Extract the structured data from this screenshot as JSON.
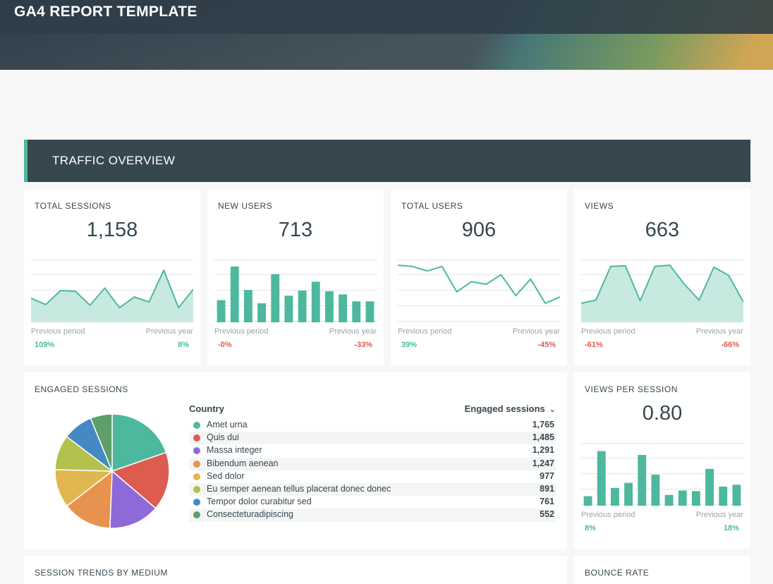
{
  "banner": {
    "title": "GA4 REPORT TEMPLATE"
  },
  "section": {
    "title": "TRAFFIC OVERVIEW"
  },
  "colors": {
    "accent": "#4db89e",
    "negative": "#e05a4f",
    "dark": "#37474f"
  },
  "labels": {
    "previous_period": "Previous period",
    "previous_year": "Previous year"
  },
  "kpis": [
    {
      "title": "TOTAL SESSIONS",
      "value": "1,158",
      "prev_period": "109%",
      "prev_year": "8%",
      "prev_period_trend": "positive",
      "prev_year_trend": "positive"
    },
    {
      "title": "NEW USERS",
      "value": "713",
      "prev_period": "-0%",
      "prev_year": "-33%",
      "prev_period_trend": "negative",
      "prev_year_trend": "negative"
    },
    {
      "title": "TOTAL USERS",
      "value": "906",
      "prev_period": "39%",
      "prev_year": "-45%",
      "prev_period_trend": "positive",
      "prev_year_trend": "negative"
    },
    {
      "title": "VIEWS",
      "value": "663",
      "prev_period": "-61%",
      "prev_year": "-66%",
      "prev_period_trend": "negative",
      "prev_year_trend": "negative"
    }
  ],
  "engaged": {
    "title": "ENGAGED SESSIONS",
    "col_country": "Country",
    "col_value": "Engaged sessions",
    "sort_icon": "chevron-down-icon",
    "rows": [
      {
        "name": "Amet urna",
        "value": "1,765",
        "color": "#4db89e"
      },
      {
        "name": "Quis dui",
        "value": "1,485",
        "color": "#dd5c50"
      },
      {
        "name": "Massa integer",
        "value": "1,291",
        "color": "#8e6ad8"
      },
      {
        "name": "Bibendum aenean",
        "value": "1,247",
        "color": "#e8924f"
      },
      {
        "name": "Sed dolor",
        "value": "977",
        "color": "#e0b74f"
      },
      {
        "name": "Eu semper aenean tellus placerat donec donec",
        "value": "891",
        "color": "#b3c24e"
      },
      {
        "name": "Tempor dolor curabitur sed",
        "value": "761",
        "color": "#4489c3"
      },
      {
        "name": "Consecteturadipiscing",
        "value": "552",
        "color": "#5e9e6a"
      }
    ]
  },
  "views_per_session": {
    "title": "VIEWS PER SESSION",
    "value": "0.80",
    "prev_period": "8%",
    "prev_year": "18%"
  },
  "bottom": {
    "left_title": "SESSION TRENDS BY MEDIUM",
    "right_title": "BOUNCE RATE"
  },
  "chart_data": [
    {
      "type": "area",
      "name": "TOTAL SESSIONS",
      "values": [
        38,
        28,
        50,
        49,
        27,
        54,
        23,
        40,
        32,
        82,
        23,
        52
      ],
      "ylim": [
        0,
        100
      ]
    },
    {
      "type": "bar",
      "name": "NEW USERS",
      "values": [
        35,
        88,
        51,
        30,
        76,
        42,
        50,
        64,
        49,
        44,
        33,
        33
      ],
      "ylim": [
        0,
        100
      ]
    },
    {
      "type": "line",
      "name": "TOTAL USERS",
      "values": [
        90,
        88,
        81,
        88,
        48,
        64,
        60,
        75,
        42,
        68,
        30,
        40
      ],
      "ylim": [
        0,
        100
      ]
    },
    {
      "type": "area",
      "name": "VIEWS",
      "values": [
        30,
        35,
        88,
        89,
        34,
        88,
        90,
        60,
        35,
        87,
        74,
        32
      ],
      "ylim": [
        0,
        100
      ]
    },
    {
      "type": "pie",
      "name": "ENGAGED SESSIONS",
      "categories": [
        "Amet urna",
        "Quis dui",
        "Massa integer",
        "Bibendum aenean",
        "Sed dolor",
        "Eu semper aenean tellus placerat donec donec",
        "Tempor dolor curabitur sed",
        "Consecteturadipiscing"
      ],
      "values": [
        1765,
        1485,
        1291,
        1247,
        977,
        891,
        761,
        552
      ]
    },
    {
      "type": "bar",
      "name": "VIEWS PER SESSION",
      "values": [
        15,
        86,
        28,
        36,
        80,
        49,
        17,
        24,
        23,
        58,
        30,
        33
      ],
      "ylim": [
        0,
        100
      ]
    }
  ]
}
